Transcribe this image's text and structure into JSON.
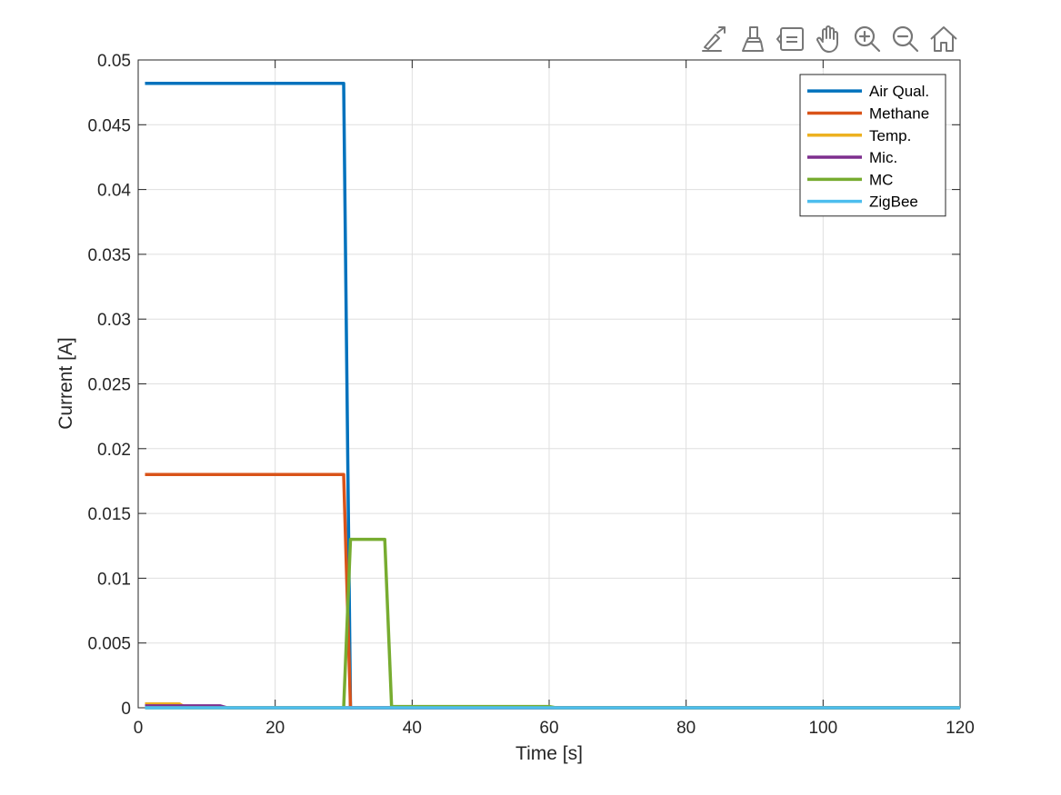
{
  "toolbar": {
    "tools": [
      {
        "icon": "export-icon"
      },
      {
        "icon": "brush-icon"
      },
      {
        "icon": "datatip-icon"
      },
      {
        "icon": "pan-hand-icon"
      },
      {
        "icon": "zoom-in-icon"
      },
      {
        "icon": "zoom-out-icon"
      },
      {
        "icon": "home-icon"
      }
    ]
  },
  "chart_data": {
    "type": "line",
    "title": "",
    "xlabel": "Time [s]",
    "ylabel": "Current [A]",
    "xlim": [
      0,
      120
    ],
    "ylim": [
      0,
      0.05
    ],
    "x_ticks": [
      0,
      20,
      40,
      60,
      80,
      100,
      120
    ],
    "x_tick_labels": [
      "0",
      "20",
      "40",
      "60",
      "80",
      "100",
      "120"
    ],
    "y_ticks": [
      0,
      0.005,
      0.01,
      0.015,
      0.02,
      0.025,
      0.03,
      0.035,
      0.04,
      0.045,
      0.05
    ],
    "y_tick_labels": [
      "0",
      "0.005",
      "0.01",
      "0.015",
      "0.02",
      "0.025",
      "0.03",
      "0.035",
      "0.04",
      "0.045",
      "0.05"
    ],
    "grid": true,
    "legend_position": "top-right",
    "series": [
      {
        "name": "Air Qual.",
        "color": "#0072BD",
        "x": [
          1,
          30,
          31,
          120
        ],
        "y": [
          0.0482,
          0.0482,
          0,
          0
        ]
      },
      {
        "name": "Methane",
        "color": "#D95319",
        "x": [
          1,
          30,
          31,
          120
        ],
        "y": [
          0.018,
          0.018,
          0,
          0
        ]
      },
      {
        "name": "Temp.",
        "color": "#EDB120",
        "x": [
          1,
          6,
          7,
          120
        ],
        "y": [
          0.0003,
          0.0003,
          0,
          0
        ]
      },
      {
        "name": "Mic.",
        "color": "#7E2F8E",
        "x": [
          1,
          12,
          13,
          120
        ],
        "y": [
          0.00015,
          0.00015,
          0,
          0
        ]
      },
      {
        "name": "MC",
        "color": "#77AC30",
        "x": [
          1,
          30,
          31,
          36,
          37,
          60,
          61,
          120
        ],
        "y": [
          0,
          0,
          0.013,
          0.013,
          0.0001,
          0.0001,
          0,
          0
        ]
      },
      {
        "name": "ZigBee",
        "color": "#4DBEEE",
        "x": [
          1,
          120
        ],
        "y": [
          0,
          0
        ]
      }
    ]
  }
}
